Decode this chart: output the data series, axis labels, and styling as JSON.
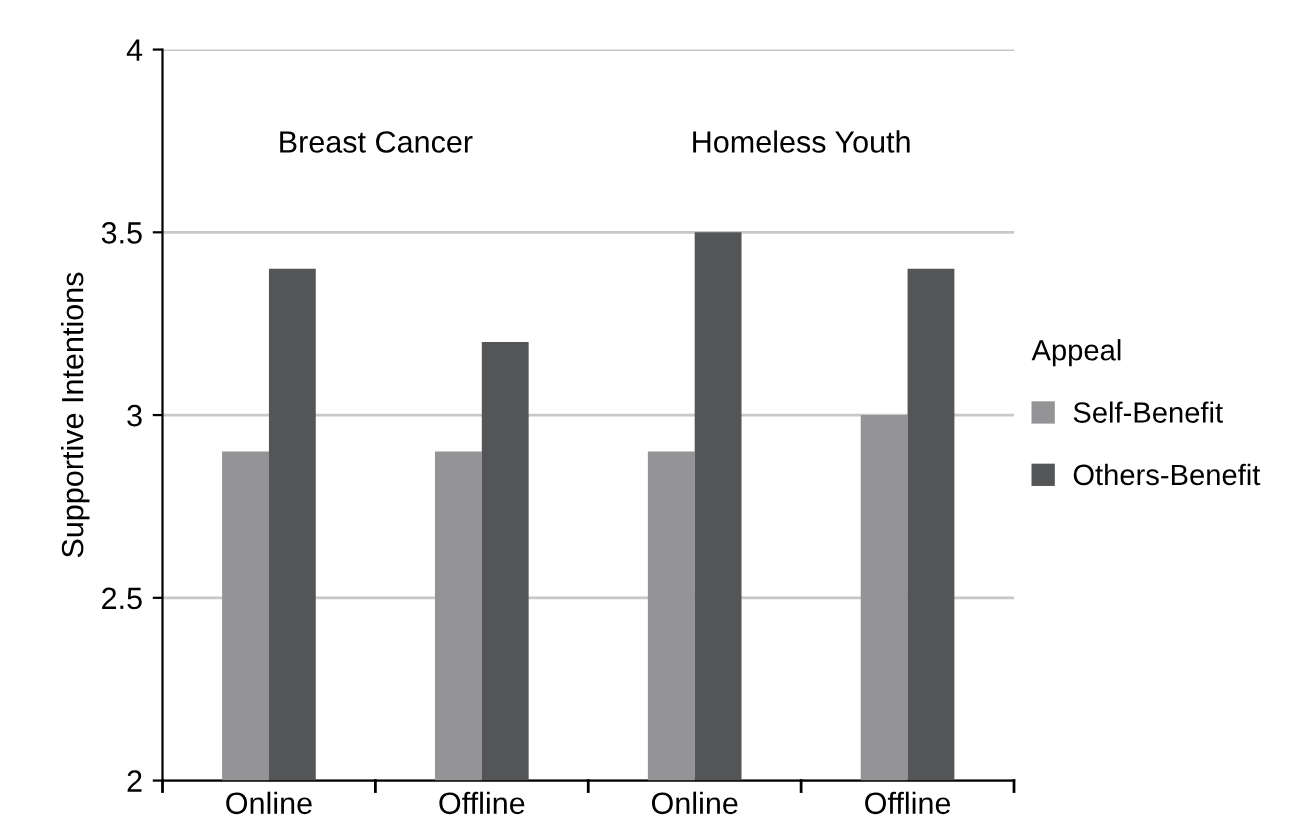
{
  "chart_data": {
    "type": "bar",
    "ylabel": "Supportive Intentions",
    "legend_title": "Appeal",
    "categories": [
      "Online",
      "Offline",
      "Online",
      "Offline"
    ],
    "series": [
      {
        "name": "Self-Benefit",
        "color": "#949496",
        "values": [
          2.9,
          2.9,
          2.9,
          3.0
        ]
      },
      {
        "name": "Others-Benefit",
        "color": "#545557",
        "values": [
          3.4,
          3.2,
          3.5,
          3.4
        ]
      }
    ],
    "annotations": [
      "Breast Cancer",
      "Homeless Youth"
    ],
    "ylim": [
      2,
      4
    ],
    "yticks": [
      2,
      2.5,
      3,
      3.5,
      4
    ],
    "grid": "y",
    "legend": "right"
  }
}
